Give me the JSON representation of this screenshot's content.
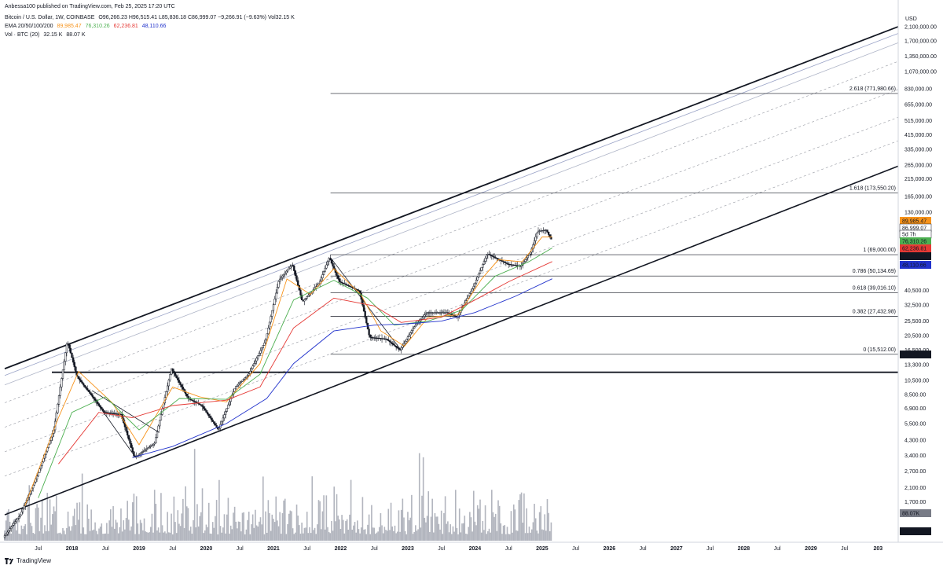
{
  "header": {
    "published": "Anbessa100 published on TradingView.com, Feb 25, 2025 17:20 UTC",
    "symbol": "Bitcoin / U.S. Dollar, 1W, COINBASE",
    "ohlc": "O96,266.23 H96,515.41 L85,836.18 C86,999.07 −9,266.91 (−9.63%) Vol32.15 K",
    "ema_label": "EMA 20/50/100/200",
    "ema_values": [
      "89,985.47",
      "76,310.26",
      "62,236.81",
      "48,110.66"
    ],
    "vol_label": "Vol · BTC (20)",
    "vol_values": [
      "32.15 K",
      "88.07 K"
    ]
  },
  "footer": {
    "brand": "TradingView"
  },
  "chart_data": {
    "type": "line",
    "currency": "USD",
    "scale": "log",
    "ylim": [
      950,
      2200000
    ],
    "y_ticks": [
      "2,100,000.00",
      "1,700,000.00",
      "1,350,000.00",
      "1,070,000.00",
      "830,000.00",
      "655,000.00",
      "515,000.00",
      "415,000.00",
      "335,000.00",
      "265,000.00",
      "215,000.00",
      "165,000.00",
      "130,000.00",
      "40,500.00",
      "32,500.00",
      "25,500.00",
      "20,500.00",
      "16,500.00",
      "13,300.00",
      "10,500.00",
      "8,500.00",
      "6,900.00",
      "5,500.00",
      "4,300.00",
      "3,400.00",
      "2,700.00",
      "2,100.00",
      "1,700.00",
      "1,120.00"
    ],
    "x_ticks": [
      "Jul",
      "2018",
      "Jul",
      "2019",
      "Jul",
      "2020",
      "Jul",
      "2021",
      "Jul",
      "2022",
      "Jul",
      "2023",
      "Jul",
      "2024",
      "Jul",
      "2025",
      "Jul",
      "2026",
      "Jul",
      "2027",
      "Jul",
      "2028",
      "Jul",
      "2029",
      "Jul",
      "203"
    ],
    "price_tags": [
      {
        "value": "89,985.47",
        "color": "#f7931a"
      },
      {
        "value": "86,999.07",
        "color": "#ffffff"
      },
      {
        "value": "5d 7h",
        "color": "#ffffff"
      },
      {
        "value": "76,310.26",
        "color": "#4caf50"
      },
      {
        "value": "62,236.81",
        "color": "#e53935"
      },
      {
        "value": "60,200.00",
        "color": "#131722"
      },
      {
        "value": "48,110.66",
        "color": "#2233cc"
      },
      {
        "value": "11,849.00",
        "color": "#131722"
      },
      {
        "value": "88.07K",
        "color": "#787b86"
      },
      {
        "value": "32.15K",
        "color": "#131722"
      }
    ],
    "fib_levels": [
      {
        "label": "2.618 (771,980.66)",
        "value": 771980.66
      },
      {
        "label": "1.618 (173,550.20)",
        "value": 173550.2
      },
      {
        "label": "1 (69,000.00)",
        "value": 69000
      },
      {
        "label": "0.786 (50,134.69)",
        "value": 50134.69
      },
      {
        "label": "0.618 (39,016.10)",
        "value": 39016.1
      },
      {
        "label": "0.382 (27,432.98)",
        "value": 27432.98
      },
      {
        "label": "0 (15,512.00)",
        "value": 15512
      }
    ],
    "horizontal_levels": [
      11849
    ],
    "price": [
      [
        2017.0,
        1000
      ],
      [
        2017.25,
        1400
      ],
      [
        2017.5,
        2500
      ],
      [
        2017.75,
        5000
      ],
      [
        2017.95,
        19000
      ],
      [
        2018.1,
        11000
      ],
      [
        2018.3,
        8500
      ],
      [
        2018.5,
        6500
      ],
      [
        2018.75,
        6300
      ],
      [
        2018.95,
        3300
      ],
      [
        2019.25,
        4100
      ],
      [
        2019.5,
        12500
      ],
      [
        2019.75,
        8000
      ],
      [
        2019.95,
        7200
      ],
      [
        2020.2,
        5000
      ],
      [
        2020.45,
        9500
      ],
      [
        2020.65,
        11500
      ],
      [
        2020.9,
        19000
      ],
      [
        2021.1,
        47000
      ],
      [
        2021.3,
        60000
      ],
      [
        2021.45,
        34000
      ],
      [
        2021.7,
        45000
      ],
      [
        2021.85,
        66000
      ],
      [
        2022.0,
        46000
      ],
      [
        2022.3,
        40000
      ],
      [
        2022.45,
        20000
      ],
      [
        2022.7,
        19500
      ],
      [
        2022.9,
        16500
      ],
      [
        2023.1,
        23000
      ],
      [
        2023.3,
        29000
      ],
      [
        2023.6,
        29000
      ],
      [
        2023.75,
        27000
      ],
      [
        2024.0,
        43000
      ],
      [
        2024.2,
        70000
      ],
      [
        2024.5,
        60000
      ],
      [
        2024.7,
        58000
      ],
      [
        2024.85,
        72000
      ],
      [
        2024.95,
        98000
      ],
      [
        2025.08,
        100000
      ],
      [
        2025.15,
        86999
      ]
    ],
    "series": [
      {
        "name": "EMA 20",
        "color": "#f7931a",
        "values": [
          [
            2017.3,
            1600
          ],
          [
            2017.8,
            6000
          ],
          [
            2018.1,
            12000
          ],
          [
            2018.6,
            7500
          ],
          [
            2019.0,
            4000
          ],
          [
            2019.5,
            9500
          ],
          [
            2019.9,
            8200
          ],
          [
            2020.3,
            7600
          ],
          [
            2020.8,
            13500
          ],
          [
            2021.2,
            48000
          ],
          [
            2021.55,
            38000
          ],
          [
            2021.9,
            56000
          ],
          [
            2022.3,
            38000
          ],
          [
            2022.6,
            22000
          ],
          [
            2022.95,
            17500
          ],
          [
            2023.3,
            27000
          ],
          [
            2023.75,
            28000
          ],
          [
            2024.1,
            48000
          ],
          [
            2024.35,
            64000
          ],
          [
            2024.7,
            62000
          ],
          [
            2025.0,
            90000
          ],
          [
            2025.15,
            89985
          ]
        ]
      },
      {
        "name": "EMA 50",
        "color": "#4caf50",
        "values": [
          [
            2017.5,
            1800
          ],
          [
            2018.0,
            6500
          ],
          [
            2018.5,
            8200
          ],
          [
            2019.0,
            5000
          ],
          [
            2019.6,
            8000
          ],
          [
            2020.3,
            7900
          ],
          [
            2020.8,
            11500
          ],
          [
            2021.3,
            35000
          ],
          [
            2021.9,
            47000
          ],
          [
            2022.4,
            36000
          ],
          [
            2022.8,
            24000
          ],
          [
            2023.3,
            25500
          ],
          [
            2023.8,
            30000
          ],
          [
            2024.3,
            50000
          ],
          [
            2024.8,
            62000
          ],
          [
            2025.15,
            76310
          ]
        ]
      },
      {
        "name": "EMA 100",
        "color": "#e53935",
        "values": [
          [
            2017.8,
            3000
          ],
          [
            2018.4,
            6500
          ],
          [
            2018.9,
            6000
          ],
          [
            2019.5,
            7200
          ],
          [
            2020.3,
            7800
          ],
          [
            2020.8,
            9500
          ],
          [
            2021.3,
            23000
          ],
          [
            2021.9,
            36000
          ],
          [
            2022.5,
            32000
          ],
          [
            2022.9,
            25000
          ],
          [
            2023.5,
            27000
          ],
          [
            2024.0,
            35000
          ],
          [
            2024.5,
            46000
          ],
          [
            2025.15,
            62236
          ]
        ]
      },
      {
        "name": "EMA 200",
        "color": "#2233cc",
        "values": [
          [
            2018.9,
            3300
          ],
          [
            2019.5,
            3900
          ],
          [
            2020.3,
            5500
          ],
          [
            2020.9,
            8000
          ],
          [
            2021.3,
            13500
          ],
          [
            2021.9,
            22000
          ],
          [
            2022.5,
            24000
          ],
          [
            2023.0,
            24500
          ],
          [
            2023.5,
            25500
          ],
          [
            2024.0,
            29000
          ],
          [
            2024.6,
            37000
          ],
          [
            2025.15,
            48110
          ]
        ]
      }
    ]
  }
}
